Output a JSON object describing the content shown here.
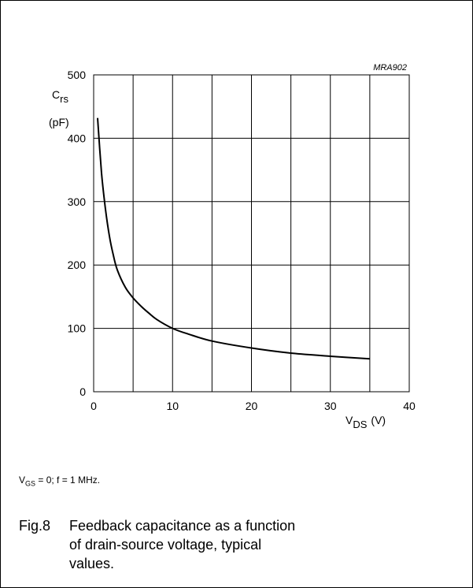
{
  "chart_data": {
    "type": "line",
    "figure_code": "MRA902",
    "ylabel_main": "C",
    "ylabel_sub": "rs",
    "ylabel_unit": "(pF)",
    "xlabel_main": "V",
    "xlabel_sub": "DS",
    "xlabel_unit": "(V)",
    "xlim": [
      0,
      40
    ],
    "ylim": [
      0,
      500
    ],
    "x_ticks": [
      0,
      10,
      20,
      30,
      40
    ],
    "y_ticks": [
      0,
      100,
      200,
      300,
      400,
      500
    ],
    "x_grid_step": 5,
    "y_grid_step": 100,
    "grid": true,
    "series": [
      {
        "x": [
          0.5,
          1,
          1.5,
          2,
          2.5,
          3,
          4,
          5,
          6,
          7,
          8,
          10,
          12,
          15,
          20,
          25,
          30,
          35
        ],
        "y": [
          432,
          345,
          288,
          245,
          215,
          192,
          165,
          148,
          135,
          124,
          114,
          100,
          91,
          80,
          69,
          61,
          56,
          52
        ]
      }
    ]
  },
  "condition": {
    "v": "V",
    "sub": "GS",
    "rest": " = 0; f = 1 MHz."
  },
  "caption": {
    "number": "Fig.8",
    "text": "Feedback capacitance as a function of drain-source voltage, typical values."
  }
}
